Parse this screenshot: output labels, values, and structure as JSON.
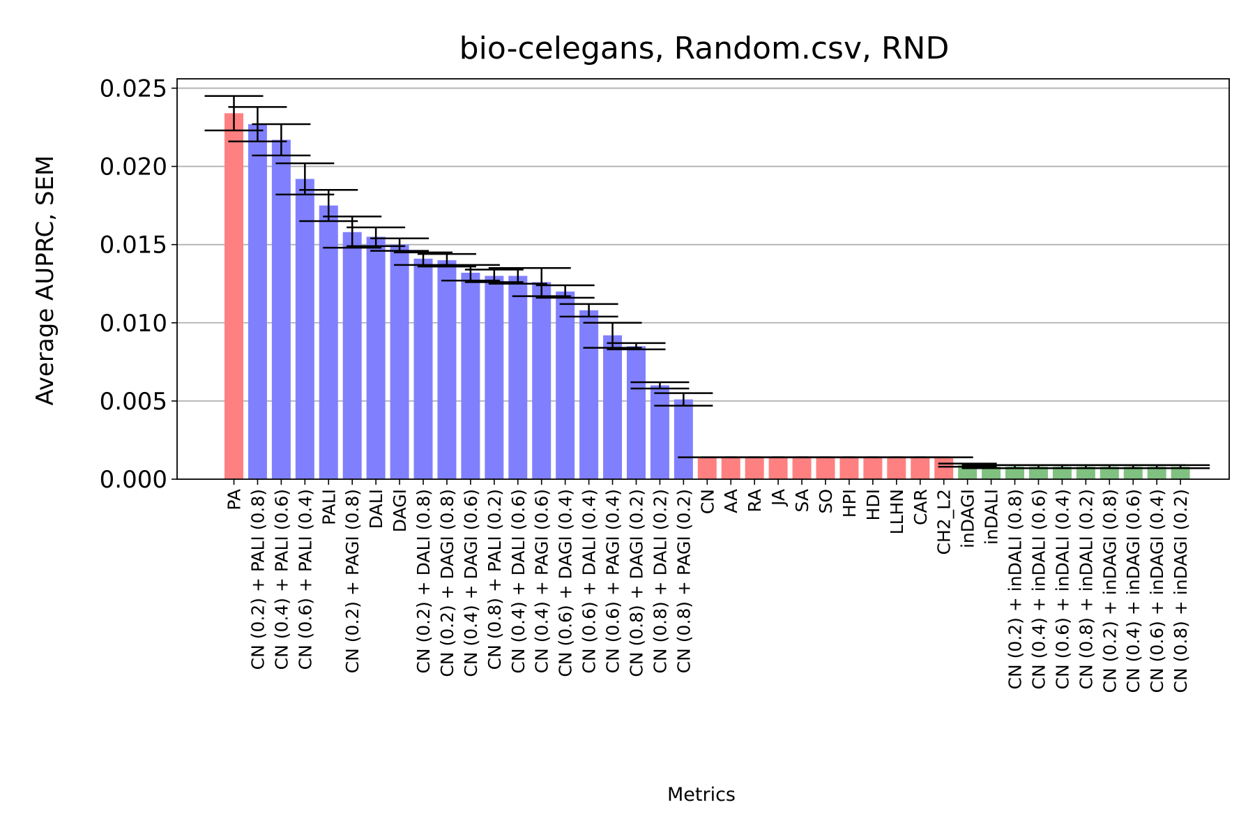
{
  "colors": {
    "red": "#ff8080",
    "blue": "#8080ff",
    "green": "#80c080",
    "error": "#000000",
    "grid": "#b0b0b0"
  },
  "chart_data": {
    "type": "bar",
    "title": "bio-celegans, Random.csv, RND",
    "xlabel": "Metrics",
    "ylabel": "Average AUPRC, SEM",
    "ylim": [
      0,
      0.0256
    ],
    "yticks": [
      "0.000",
      "0.005",
      "0.010",
      "0.015",
      "0.020",
      "0.025"
    ],
    "ytick_values": [
      0,
      0.005,
      0.01,
      0.015,
      0.02,
      0.025
    ],
    "grid": "horizontal",
    "categories": [
      "PA",
      "CN (0.2) + PALI (0.8)",
      "CN (0.4) + PALI (0.6)",
      "CN (0.6) + PALI (0.4)",
      "PALI",
      "CN (0.2) + PAGI (0.8)",
      "DALI",
      "DAGI",
      "CN (0.2) + DALI (0.8)",
      "CN (0.2) + DAGI (0.8)",
      "CN (0.4) + DAGI (0.6)",
      "CN (0.8) + PALI (0.2)",
      "CN (0.4) + DALI (0.6)",
      "CN (0.4) + PAGI (0.6)",
      "CN (0.6) + DAGI (0.4)",
      "CN (0.6) + DALI (0.4)",
      "CN (0.6) + PAGI (0.4)",
      "CN (0.8) + DAGI (0.2)",
      "CN (0.8) + DALI (0.2)",
      "CN (0.8) + PAGI (0.2)",
      "CN",
      "AA",
      "RA",
      "JA",
      "SA",
      "SO",
      "HPI",
      "HDI",
      "LLHN",
      "CAR",
      "CH2_L2",
      "inDAGI",
      "inDALI",
      "CN (0.2) + inDALI (0.8)",
      "CN (0.4) + inDALI (0.6)",
      "CN (0.6) + inDALI (0.4)",
      "CN (0.8) + inDALI (0.2)",
      "CN (0.2) + inDAGI (0.8)",
      "CN (0.4) + inDAGI (0.6)",
      "CN (0.6) + inDAGI (0.4)",
      "CN (0.8) + inDAGI (0.2)"
    ],
    "values": [
      0.0234,
      0.0227,
      0.0217,
      0.0192,
      0.0175,
      0.0158,
      0.0155,
      0.015,
      0.0141,
      0.014,
      0.0132,
      0.013,
      0.013,
      0.0126,
      0.012,
      0.0108,
      0.0092,
      0.0085,
      0.006,
      0.0051,
      0.0014,
      0.0014,
      0.0014,
      0.0014,
      0.0014,
      0.0014,
      0.0014,
      0.0014,
      0.0014,
      0.0014,
      0.0014,
      0.0009,
      0.0008,
      0.0008,
      0.0008,
      0.0008,
      0.0008,
      0.0008,
      0.0008,
      0.0008,
      0.0008
    ],
    "errors": [
      0.0011,
      0.0011,
      0.001,
      0.001,
      0.001,
      0.001,
      0.0006,
      0.0004,
      0.0004,
      0.0004,
      0.0005,
      0.0004,
      0.0005,
      0.0009,
      0.0004,
      0.0004,
      0.0008,
      0.0002,
      0.0002,
      0.0004,
      0,
      0,
      0,
      0,
      0,
      0,
      0,
      0,
      0,
      0,
      0,
      0.0001,
      0.0001,
      0.0001,
      0.0001,
      0.0001,
      0.0001,
      0.0001,
      0.0001,
      0.0001,
      0.0001
    ],
    "bar_colors": [
      "red",
      "blue",
      "blue",
      "blue",
      "blue",
      "blue",
      "blue",
      "blue",
      "blue",
      "blue",
      "blue",
      "blue",
      "blue",
      "blue",
      "blue",
      "blue",
      "blue",
      "blue",
      "blue",
      "blue",
      "red",
      "red",
      "red",
      "red",
      "red",
      "red",
      "red",
      "red",
      "red",
      "red",
      "red",
      "green",
      "green",
      "green",
      "green",
      "green",
      "green",
      "green",
      "green",
      "green",
      "green"
    ]
  }
}
